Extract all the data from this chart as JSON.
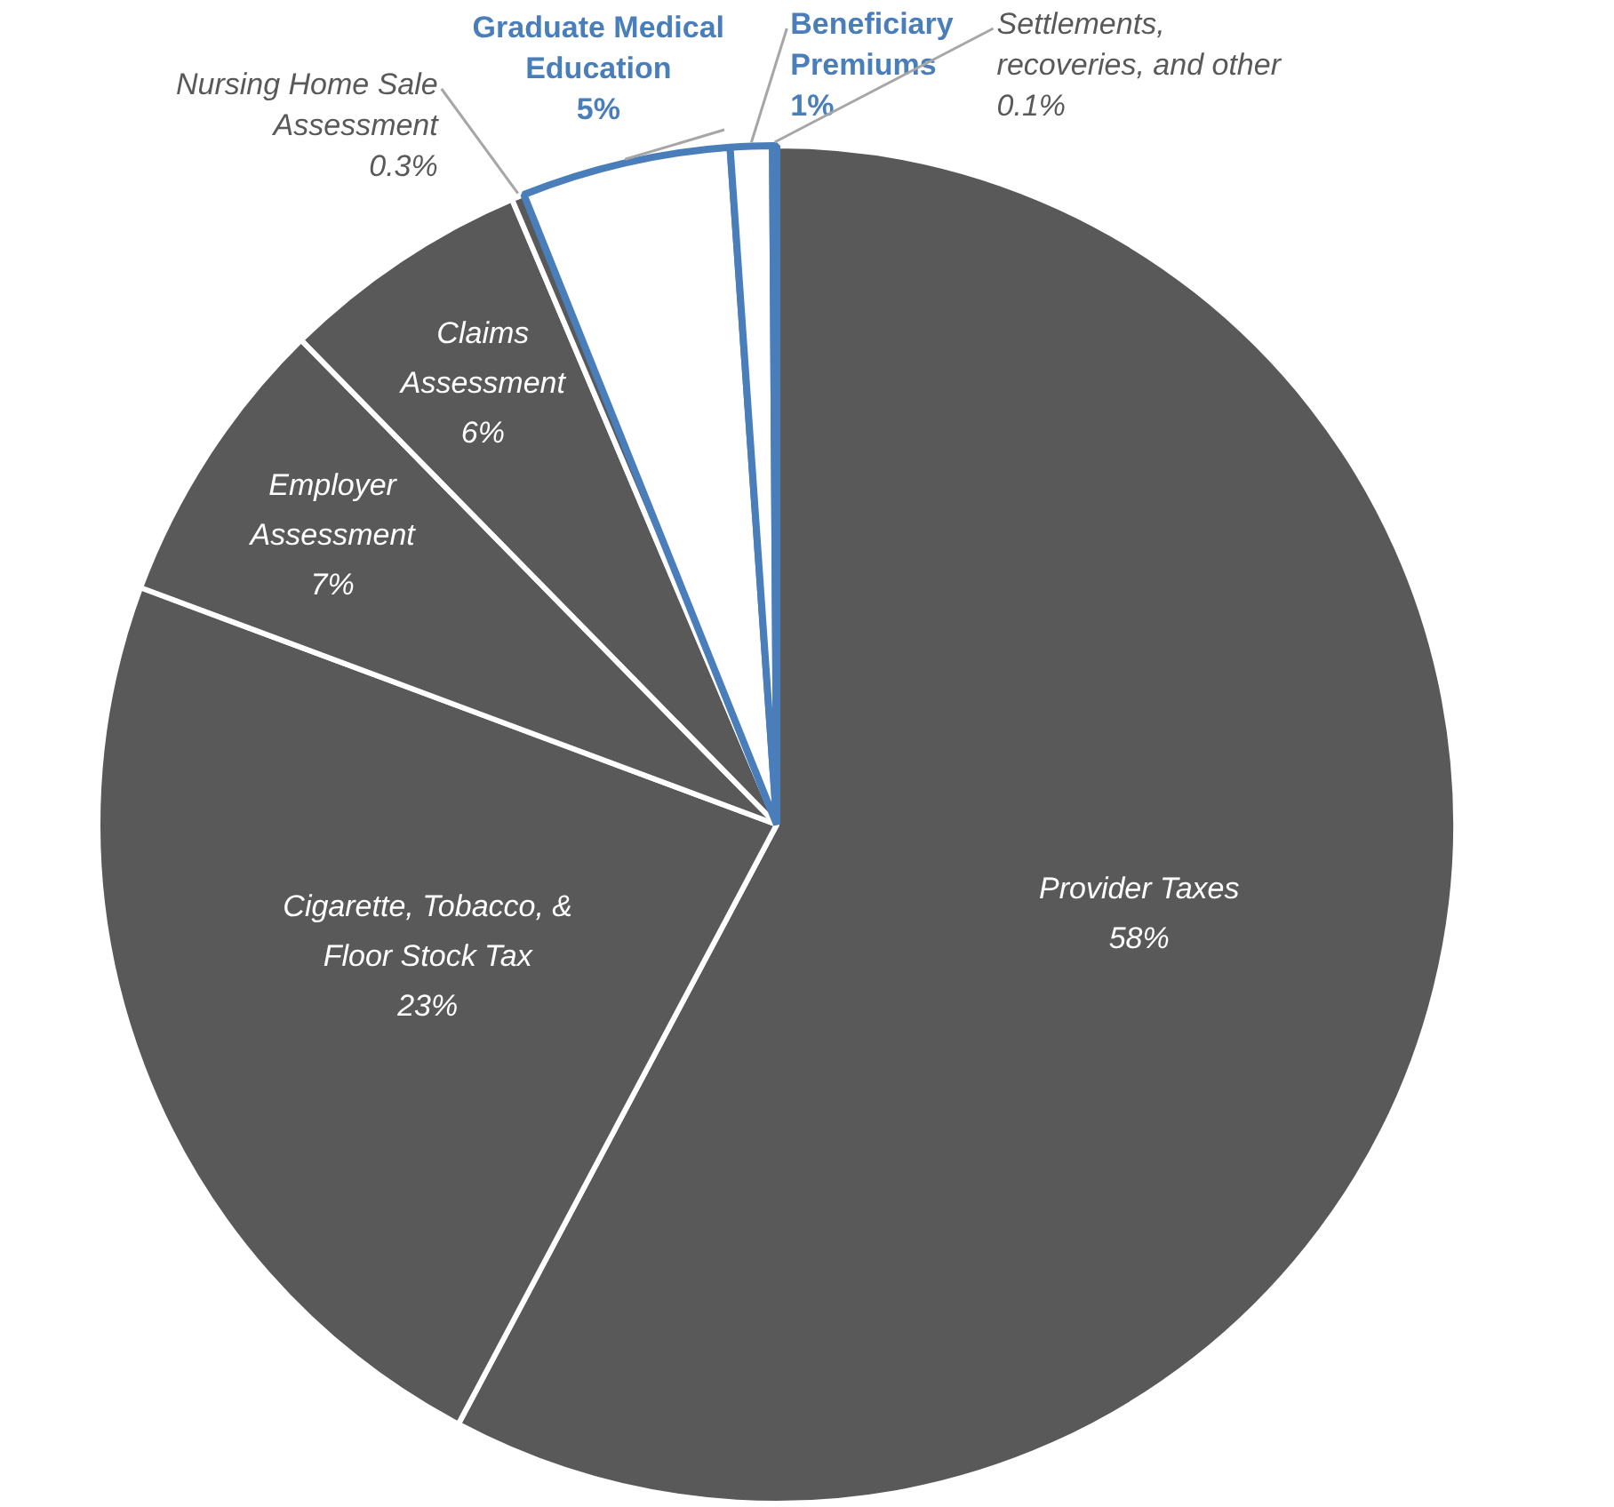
{
  "chart_data": {
    "type": "pie",
    "categories": [
      "Provider Taxes",
      "Cigarette, Tobacco, & Floor Stock Tax",
      "Employer Assessment",
      "Claims Assessment",
      "Nursing Home Sale Assessment",
      "Graduate Medical Education",
      "Beneficiary Premiums",
      "Settlements, recoveries, and other"
    ],
    "values": [
      58,
      23,
      7,
      6,
      0.3,
      5,
      1,
      0.1
    ],
    "value_labels": [
      "58%",
      "23%",
      "7%",
      "6%",
      "0.3%",
      "5%",
      "1%",
      "0.1%"
    ],
    "colors": [
      "#595959",
      "#595959",
      "#595959",
      "#595959",
      "#595959",
      "#ffffff",
      "#ffffff",
      "#ffffff"
    ],
    "legend": false
  }
}
